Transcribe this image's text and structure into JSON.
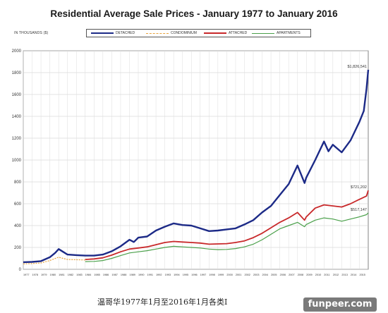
{
  "chart_data": {
    "type": "line",
    "title": "Residential Average Sale Prices  -  January 1977 to January 2016",
    "unit_label": "IN THOUSANDS ($)",
    "ylim": [
      0,
      2000
    ],
    "yticks": [
      0,
      200,
      400,
      600,
      800,
      1000,
      1200,
      1400,
      1600,
      1800,
      2000
    ],
    "xlim": [
      1977,
      2016
    ],
    "xtick_labels": [
      "1977",
      "1978",
      "1979",
      "1980",
      "1981",
      "1982",
      "1983",
      "1984",
      "1985",
      "1986",
      "1987",
      "1988",
      "1989",
      "1990",
      "1991",
      "1992",
      "1993",
      "1994",
      "1995",
      "1996",
      "1997",
      "1998",
      "1999",
      "2000",
      "2001",
      "2002",
      "2003",
      "2004",
      "2005",
      "2006",
      "2007",
      "2008",
      "2009",
      "2010",
      "2011",
      "2012",
      "2013",
      "2014",
      "2015"
    ],
    "grid": true,
    "legend_position": "top",
    "series": [
      {
        "name": "DETACHED",
        "color": "#1c2a87",
        "points": [
          [
            1977,
            65
          ],
          [
            1978,
            68
          ],
          [
            1979,
            75
          ],
          [
            1980,
            110
          ],
          [
            1980.6,
            150
          ],
          [
            1981,
            185
          ],
          [
            1981.5,
            160
          ],
          [
            1982,
            135
          ],
          [
            1983,
            130
          ],
          [
            1984,
            125
          ],
          [
            1985,
            125
          ],
          [
            1986,
            135
          ],
          [
            1987,
            165
          ],
          [
            1988,
            210
          ],
          [
            1989,
            270
          ],
          [
            1989.5,
            250
          ],
          [
            1990,
            290
          ],
          [
            1991,
            300
          ],
          [
            1992,
            355
          ],
          [
            1993,
            390
          ],
          [
            1994,
            420
          ],
          [
            1995,
            405
          ],
          [
            1996,
            400
          ],
          [
            1997,
            375
          ],
          [
            1998,
            350
          ],
          [
            1999,
            355
          ],
          [
            2000,
            365
          ],
          [
            2001,
            375
          ],
          [
            2002,
            410
          ],
          [
            2003,
            450
          ],
          [
            2004,
            520
          ],
          [
            2005,
            580
          ],
          [
            2006,
            680
          ],
          [
            2007,
            780
          ],
          [
            2008,
            950
          ],
          [
            2008.8,
            790
          ],
          [
            2009,
            840
          ],
          [
            2010,
            1000
          ],
          [
            2011,
            1170
          ],
          [
            2011.5,
            1080
          ],
          [
            2012,
            1140
          ],
          [
            2013,
            1070
          ],
          [
            2014,
            1180
          ],
          [
            2015,
            1350
          ],
          [
            2015.5,
            1450
          ],
          [
            2015.8,
            1650
          ],
          [
            2016,
            1826
          ]
        ],
        "end_label": "$1,826,541"
      },
      {
        "name": "CONDOMINIUM",
        "color": "#e8a33c",
        "points": [
          [
            1977,
            50
          ],
          [
            1978,
            52
          ],
          [
            1979,
            58
          ],
          [
            1980,
            80
          ],
          [
            1980.8,
            105
          ],
          [
            1981,
            110
          ],
          [
            1982,
            90
          ],
          [
            1983,
            88
          ],
          [
            1984,
            85
          ]
        ]
      },
      {
        "name": "ATTACHED",
        "color": "#c8282a",
        "points": [
          [
            1984,
            90
          ],
          [
            1985,
            95
          ],
          [
            1986,
            105
          ],
          [
            1987,
            130
          ],
          [
            1988,
            160
          ],
          [
            1989,
            185
          ],
          [
            1990,
            195
          ],
          [
            1991,
            205
          ],
          [
            1992,
            225
          ],
          [
            1993,
            245
          ],
          [
            1994,
            255
          ],
          [
            1995,
            250
          ],
          [
            1996,
            245
          ],
          [
            1997,
            240
          ],
          [
            1998,
            230
          ],
          [
            1999,
            232
          ],
          [
            2000,
            235
          ],
          [
            2001,
            245
          ],
          [
            2002,
            260
          ],
          [
            2003,
            290
          ],
          [
            2004,
            330
          ],
          [
            2005,
            380
          ],
          [
            2006,
            430
          ],
          [
            2007,
            470
          ],
          [
            2008,
            520
          ],
          [
            2008.8,
            450
          ],
          [
            2009,
            480
          ],
          [
            2010,
            560
          ],
          [
            2011,
            590
          ],
          [
            2012,
            580
          ],
          [
            2013,
            570
          ],
          [
            2014,
            600
          ],
          [
            2015,
            640
          ],
          [
            2015.8,
            670
          ],
          [
            2016,
            721
          ]
        ],
        "end_label": "$721,202"
      },
      {
        "name": "APARTMENTS",
        "color": "#4aa04a",
        "points": [
          [
            1984,
            70
          ],
          [
            1985,
            72
          ],
          [
            1986,
            80
          ],
          [
            1987,
            100
          ],
          [
            1988,
            125
          ],
          [
            1989,
            150
          ],
          [
            1990,
            160
          ],
          [
            1991,
            170
          ],
          [
            1992,
            185
          ],
          [
            1993,
            200
          ],
          [
            1994,
            210
          ],
          [
            1995,
            205
          ],
          [
            1996,
            200
          ],
          [
            1997,
            195
          ],
          [
            1998,
            185
          ],
          [
            1999,
            180
          ],
          [
            2000,
            182
          ],
          [
            2001,
            190
          ],
          [
            2002,
            205
          ],
          [
            2003,
            230
          ],
          [
            2004,
            270
          ],
          [
            2005,
            320
          ],
          [
            2006,
            370
          ],
          [
            2007,
            400
          ],
          [
            2008,
            430
          ],
          [
            2008.8,
            390
          ],
          [
            2009,
            410
          ],
          [
            2010,
            450
          ],
          [
            2011,
            470
          ],
          [
            2012,
            460
          ],
          [
            2013,
            440
          ],
          [
            2014,
            460
          ],
          [
            2015,
            480
          ],
          [
            2015.8,
            500
          ],
          [
            2016,
            517
          ]
        ],
        "end_label": "$517,147"
      }
    ]
  },
  "caption": "温哥华1977年1月至2016年1月各类I",
  "watermark": "funpeer.com"
}
